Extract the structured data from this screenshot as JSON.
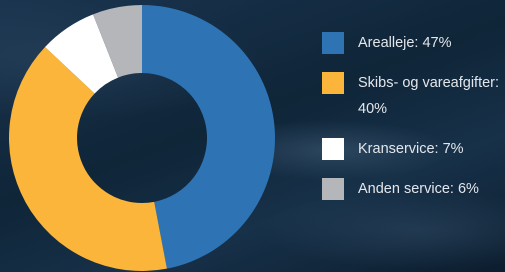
{
  "chart_data": {
    "type": "donut",
    "categories": [
      "Arealleje: 47%",
      "Skibs- og vareafgifter: 40%",
      "Kranservice: 7%",
      "Anden service: 6%"
    ],
    "values": [
      47,
      40,
      7,
      6
    ],
    "colors": [
      "#2e74b5",
      "#fbb53b",
      "#ffffff",
      "#b4b6b9"
    ]
  }
}
